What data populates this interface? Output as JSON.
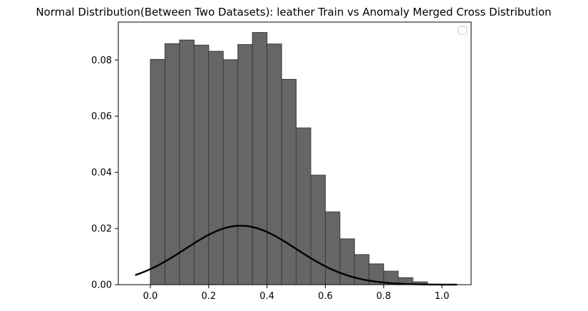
{
  "chart_data": {
    "type": "bar",
    "title": "Normal Distribution(Between Two Datasets): leather Train vs Anomaly Merged Cross Distribution",
    "xlabel": "",
    "ylabel": "",
    "xlim": [
      -0.11,
      1.1
    ],
    "ylim": [
      0.0,
      0.0935
    ],
    "x_ticks": [
      "0.0",
      "0.2",
      "0.4",
      "0.6",
      "0.8",
      "1.0"
    ],
    "x_tick_values": [
      0.0,
      0.2,
      0.4,
      0.6,
      0.8,
      1.0
    ],
    "y_ticks": [
      "0.00",
      "0.02",
      "0.04",
      "0.06",
      "0.08"
    ],
    "y_tick_values": [
      0.0,
      0.02,
      0.04,
      0.06,
      0.08
    ],
    "grid": false,
    "legend": {
      "location": "top-right",
      "entries": []
    },
    "histogram": {
      "bin_edges": [
        0.0,
        0.05,
        0.1,
        0.15,
        0.2,
        0.25,
        0.3,
        0.35,
        0.4,
        0.45,
        0.5,
        0.55,
        0.6,
        0.65,
        0.7,
        0.75,
        0.8,
        0.85,
        0.9,
        0.95
      ],
      "values": [
        0.0802,
        0.0858,
        0.0871,
        0.0853,
        0.0831,
        0.0801,
        0.0855,
        0.0898,
        0.0857,
        0.0731,
        0.0558,
        0.039,
        0.0259,
        0.0163,
        0.0107,
        0.0074,
        0.0048,
        0.0025,
        0.001
      ],
      "fill_color": "#666666",
      "edge_color": "#3a3a3a"
    },
    "curve": {
      "kind": "normal_pdf",
      "mean": 0.31,
      "std": 0.19,
      "scale": 0.021,
      "x_range": [
        -0.05,
        1.05
      ],
      "color": "#000000"
    }
  }
}
